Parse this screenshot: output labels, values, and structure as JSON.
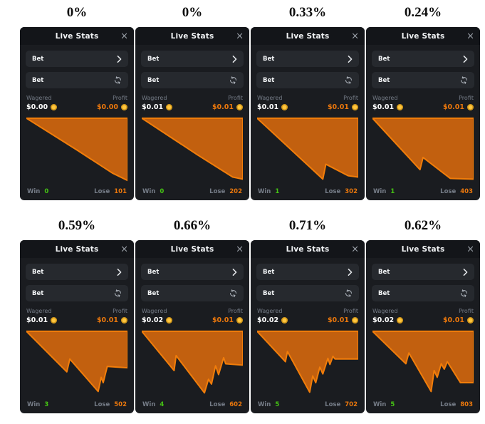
{
  "colors": {
    "page_bg": "#ffffff",
    "panel_bg": "#1a1c20",
    "header_bg": "#131519",
    "row_bg": "#26292e",
    "chart_fill": "#c2600f",
    "chart_line": "#f17d0a",
    "profit_text": "#ea770c",
    "win_text": "#45c414",
    "lose_text": "#ea770c",
    "muted_text": "#757c87",
    "coin": "#ffc53d"
  },
  "icons": {
    "close": "×",
    "chevron": "chevron-right",
    "refresh": "refresh-cycle",
    "coin": "gold-coin"
  },
  "panels": [
    {
      "label": "0%",
      "header": {
        "title": "Live Stats",
        "close_icon": "×"
      },
      "rows": [
        {
          "label": "Bet"
        },
        {
          "label": "Bet"
        }
      ],
      "stats": {
        "wagered_label": "Wagered",
        "wagered_value": "$0.00",
        "profit_label": "Profit",
        "profit_value": "$0.00"
      },
      "footer": {
        "win_label": "Win",
        "win_value": "0",
        "lose_label": "Lose",
        "lose_value": "101"
      },
      "chart": {
        "type": "area",
        "points": [
          [
            0,
            3
          ],
          [
            50,
            50
          ],
          [
            85,
            84
          ],
          [
            100,
            95
          ]
        ]
      }
    },
    {
      "label": "0%",
      "header": {
        "title": "Live Stats",
        "close_icon": "×"
      },
      "rows": [
        {
          "label": "Bet"
        },
        {
          "label": "Bet"
        }
      ],
      "stats": {
        "wagered_label": "Wagered",
        "wagered_value": "$0.01",
        "profit_label": "Profit",
        "profit_value": "$0.01"
      },
      "footer": {
        "win_label": "Win",
        "win_value": "0",
        "lose_label": "Lose",
        "lose_value": "202"
      },
      "chart": {
        "type": "area",
        "points": [
          [
            0,
            3
          ],
          [
            55,
            57
          ],
          [
            90,
            90
          ],
          [
            100,
            93
          ]
        ]
      }
    },
    {
      "label": "0.33%",
      "header": {
        "title": "Live Stats",
        "close_icon": "×"
      },
      "rows": [
        {
          "label": "Bet"
        },
        {
          "label": "Bet"
        }
      ],
      "stats": {
        "wagered_label": "Wagered",
        "wagered_value": "$0.01",
        "profit_label": "Profit",
        "profit_value": "$0.01"
      },
      "footer": {
        "win_label": "Win",
        "win_value": "1",
        "lose_label": "Lose",
        "lose_value": "302"
      },
      "chart": {
        "type": "area",
        "points": [
          [
            0,
            3
          ],
          [
            65,
            93
          ],
          [
            68,
            71
          ],
          [
            90,
            88
          ],
          [
            100,
            90
          ]
        ]
      }
    },
    {
      "label": "0.24%",
      "header": {
        "title": "Live Stats",
        "close_icon": "×"
      },
      "rows": [
        {
          "label": "Bet"
        },
        {
          "label": "Bet"
        }
      ],
      "stats": {
        "wagered_label": "Wagered",
        "wagered_value": "$0.01",
        "profit_label": "Profit",
        "profit_value": "$0.01"
      },
      "footer": {
        "win_label": "Win",
        "win_value": "1",
        "lose_label": "Lose",
        "lose_value": "403"
      },
      "chart": {
        "type": "area",
        "points": [
          [
            0,
            3
          ],
          [
            47,
            79
          ],
          [
            50,
            61
          ],
          [
            77,
            92
          ],
          [
            100,
            93
          ]
        ]
      }
    },
    {
      "label": "0.59%",
      "header": {
        "title": "Live Stats",
        "close_icon": "×"
      },
      "rows": [
        {
          "label": "Bet"
        },
        {
          "label": "Bet"
        }
      ],
      "stats": {
        "wagered_label": "Wagered",
        "wagered_value": "$0.01",
        "profit_label": "Profit",
        "profit_value": "$0.01"
      },
      "footer": {
        "win_label": "Win",
        "win_value": "3",
        "lose_label": "Lose",
        "lose_value": "502"
      },
      "chart": {
        "type": "area",
        "points": [
          [
            0,
            3
          ],
          [
            40,
            63
          ],
          [
            43,
            44
          ],
          [
            71,
            92
          ],
          [
            74,
            71
          ],
          [
            76,
            79
          ],
          [
            80,
            55
          ],
          [
            100,
            57
          ]
        ]
      }
    },
    {
      "label": "0.66%",
      "header": {
        "title": "Live Stats",
        "close_icon": "×"
      },
      "rows": [
        {
          "label": "Bet"
        },
        {
          "label": "Bet"
        }
      ],
      "stats": {
        "wagered_label": "Wagered",
        "wagered_value": "$0.02",
        "profit_label": "Profit",
        "profit_value": "$0.01"
      },
      "footer": {
        "win_label": "Win",
        "win_value": "4",
        "lose_label": "Lose",
        "lose_value": "602"
      },
      "chart": {
        "type": "area",
        "points": [
          [
            0,
            3
          ],
          [
            32,
            61
          ],
          [
            34,
            39
          ],
          [
            62,
            94
          ],
          [
            66,
            74
          ],
          [
            69,
            81
          ],
          [
            73,
            54
          ],
          [
            76,
            67
          ],
          [
            81,
            42
          ],
          [
            83,
            51
          ],
          [
            100,
            53
          ]
        ]
      }
    },
    {
      "label": "0.71%",
      "header": {
        "title": "Live Stats",
        "close_icon": "×"
      },
      "rows": [
        {
          "label": "Bet"
        },
        {
          "label": "Bet"
        }
      ],
      "stats": {
        "wagered_label": "Wagered",
        "wagered_value": "$0.02",
        "profit_label": "Profit",
        "profit_value": "$0.01"
      },
      "footer": {
        "win_label": "Win",
        "win_value": "5",
        "lose_label": "Lose",
        "lose_value": "702"
      },
      "chart": {
        "type": "area",
        "points": [
          [
            0,
            3
          ],
          [
            28,
            48
          ],
          [
            30,
            33
          ],
          [
            52,
            93
          ],
          [
            55,
            69
          ],
          [
            58,
            79
          ],
          [
            62,
            56
          ],
          [
            65,
            66
          ],
          [
            70,
            43
          ],
          [
            72,
            52
          ],
          [
            75,
            40
          ],
          [
            77,
            44
          ],
          [
            100,
            44
          ]
        ]
      }
    },
    {
      "label": "0.62%",
      "header": {
        "title": "Live Stats",
        "close_icon": "×"
      },
      "rows": [
        {
          "label": "Bet"
        },
        {
          "label": "Bet"
        }
      ],
      "stats": {
        "wagered_label": "Wagered",
        "wagered_value": "$0.02",
        "profit_label": "Profit",
        "profit_value": "$0.01"
      },
      "footer": {
        "win_label": "Win",
        "win_value": "5",
        "lose_label": "Lose",
        "lose_value": "803"
      },
      "chart": {
        "type": "area",
        "points": [
          [
            0,
            3
          ],
          [
            33,
            51
          ],
          [
            36,
            35
          ],
          [
            58,
            92
          ],
          [
            61,
            61
          ],
          [
            64,
            71
          ],
          [
            68,
            51
          ],
          [
            71,
            59
          ],
          [
            74,
            48
          ],
          [
            87,
            79
          ],
          [
            100,
            79
          ]
        ]
      }
    }
  ]
}
